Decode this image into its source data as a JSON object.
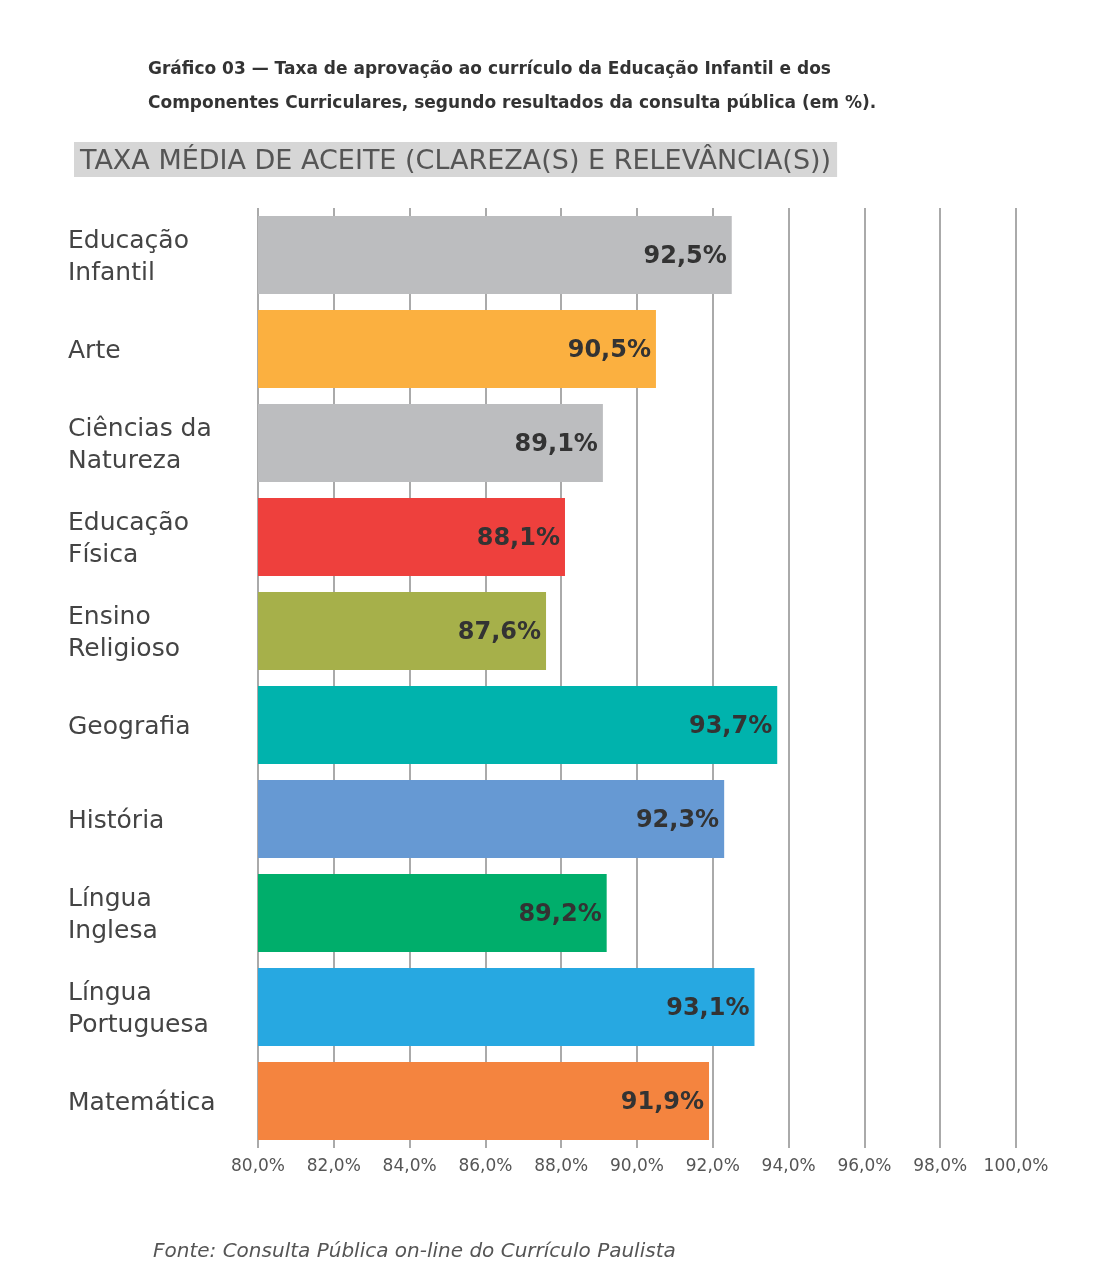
{
  "chart_data": {
    "type": "bar",
    "orientation": "horizontal",
    "title": "Gráfico 03 — Taxa de aprovação ao currículo da Educação Infantil e dos Componentes Curriculares, segundo resultados da consulta pública (em %).",
    "subtitle": "TAXA MÉDIA DE ACEITE (CLAREZA(S) E RELEVÂNCIA(S))",
    "categories": [
      "Educação Infantil",
      "Arte",
      "Ciências da Natureza",
      "Educação Física",
      "Ensino Religioso",
      "Geografia",
      "História",
      "Língua Inglesa",
      "Língua Portuguesa",
      "Matemática"
    ],
    "values": [
      92.5,
      90.5,
      89.1,
      88.1,
      87.6,
      93.7,
      92.3,
      89.2,
      93.1,
      91.9
    ],
    "value_labels": [
      "92,5%",
      "90,5%",
      "89,1%",
      "88,1%",
      "87,6%",
      "93,7%",
      "92,3%",
      "89,2%",
      "93,1%",
      "91,9%"
    ],
    "colors": [
      "#bcbdbf",
      "#fbb040",
      "#bcbdbf",
      "#ee403d",
      "#a6b04a",
      "#00b3ad",
      "#6699d3",
      "#00ae6b",
      "#27a8e1",
      "#f4843f"
    ],
    "xlim": [
      80,
      100
    ],
    "xticks": [
      {
        "value": 80,
        "label": "80,0%"
      },
      {
        "value": 82,
        "label": "82,0%"
      },
      {
        "value": 84,
        "label": "84,0%"
      },
      {
        "value": 86,
        "label": "86,0%"
      },
      {
        "value": 88,
        "label": "88,0%"
      },
      {
        "value": 90,
        "label": "90,0%"
      },
      {
        "value": 92,
        "label": "92,0%"
      },
      {
        "value": 94,
        "label": "94,0%"
      },
      {
        "value": 96,
        "label": "96,0%"
      },
      {
        "value": 98,
        "label": "98,0%"
      },
      {
        "value": 100,
        "label": "100,0%"
      }
    ],
    "grid": "x",
    "annotations": [
      "Fonte: Consulta Pública on-line do Currículo Paulista"
    ]
  }
}
